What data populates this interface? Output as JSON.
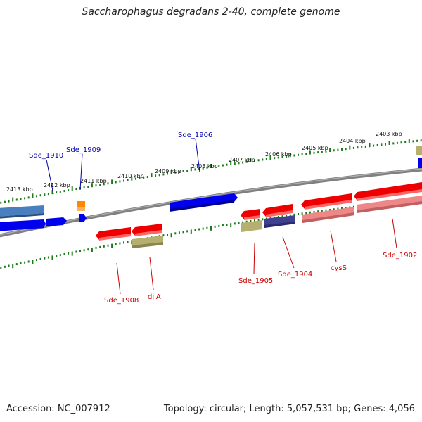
{
  "title": "Saccharophagus degradans 2-40, complete genome",
  "footer": {
    "accession": "Accession: NC_007912",
    "summary": "Topology: circular; Length: 5,057,531 bp; Genes: 4,056"
  },
  "colors": {
    "backbone": "#808080",
    "tick": "#1a7a1a",
    "label_top": "#0000aa",
    "label_bottom": "#cc0000",
    "gene_blue": "#0000ee",
    "gene_steel": "#4a7fbf",
    "gene_orange": "#ff8800",
    "gene_red": "#ee0000",
    "gene_pink": "#ee8888",
    "gene_khaki": "#b5b070",
    "gene_navy": "#404090"
  },
  "kbp_labels": [
    "2413 kbp",
    "2412 kbp",
    "2411 kbp",
    "2410 kbp",
    "2409 kbp",
    "2408 kbp",
    "2407 kbp",
    "2406 kbp",
    "2405 kbp",
    "2404 kbp",
    "2403 kbp"
  ],
  "gene_labels_top": [
    "Sde_1910",
    "Sde_1909",
    "Sde_1906"
  ],
  "gene_labels_bottom": [
    "Sde_1908",
    "djlA",
    "Sde_1905",
    "Sde_1904",
    "cysS",
    "Sde_1902"
  ]
}
